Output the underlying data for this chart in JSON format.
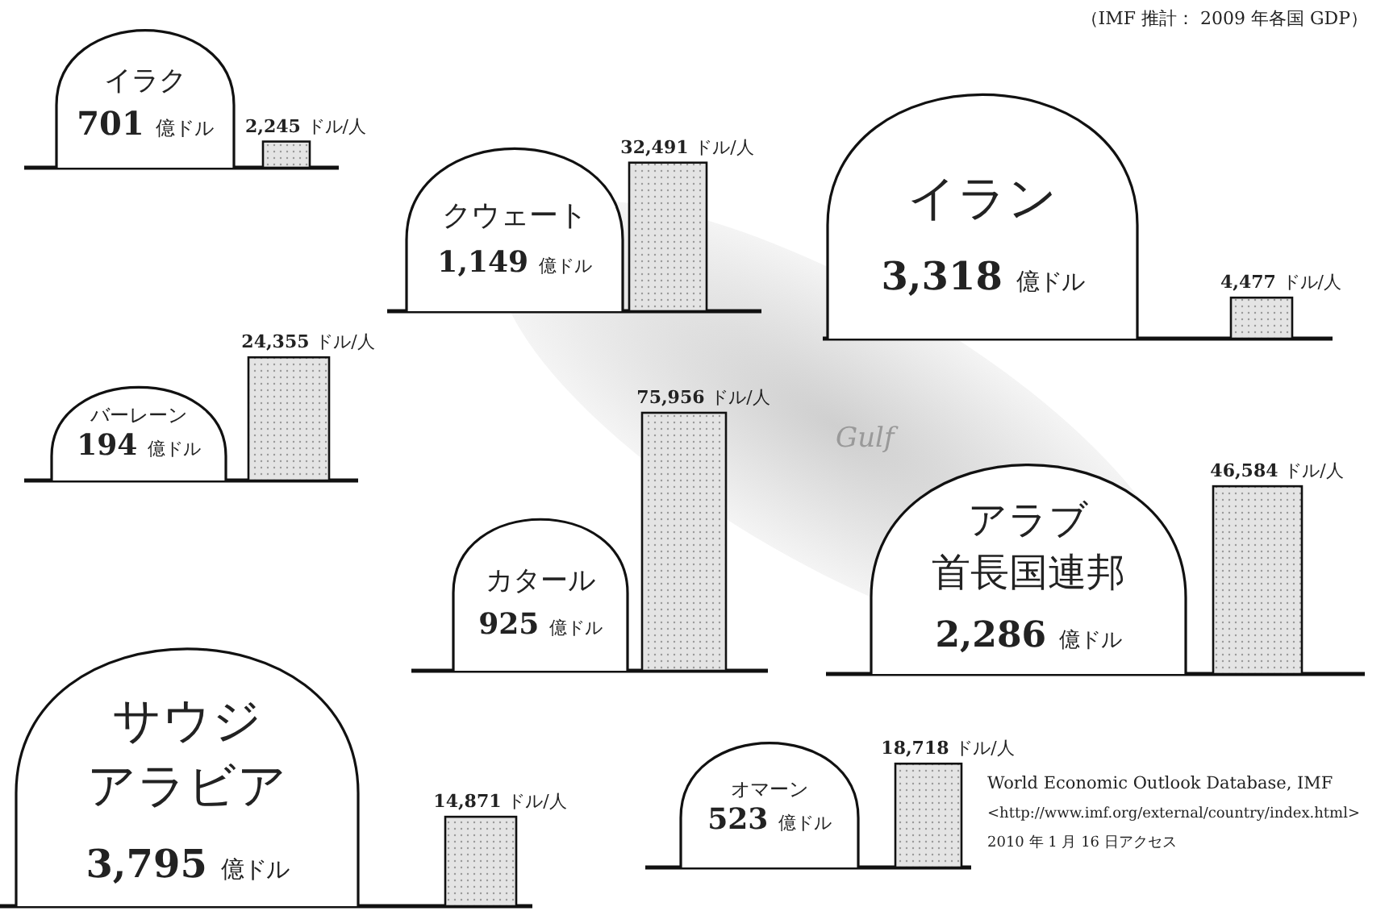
{
  "chart_data": {
    "type": "other",
    "title": "（IMF 推計： 2009 年各国 GDP）",
    "categories": [
      "イラク",
      "クウェート",
      "イラン",
      "バーレーン",
      "カタール",
      "アラブ首長国連邦",
      "サウジアラビア",
      "オマーン"
    ],
    "series": [
      {
        "type": "other",
        "color": "#ffffff",
        "values": [
          701,
          1149,
          3318,
          194,
          925,
          2286,
          3795,
          523
        ],
        "value_labels": [
          "701 億ドル",
          "1,149 億ドル",
          "3,318 億ドル",
          "194 億ドル",
          "925 億ドル",
          "2,286 億ドル",
          "3,795 億ドル",
          "523 億ドル"
        ]
      },
      {
        "type": "bar",
        "color": "#e4e4e4",
        "values": [
          2245,
          32491,
          4477,
          24355,
          75956,
          46584,
          14871,
          18718
        ],
        "value_labels": [
          "2,245 ドル/人",
          "32,491 ドル/人",
          "4,477 ドル/人",
          "24,355 ドル/人",
          "75,956 ドル/人",
          "46,584 ドル/人",
          "14,871 ドル/人",
          "18,718 ドル/人"
        ]
      }
    ],
    "annotations": [
      "Gulf",
      "World Economic Outlook Database, IMF",
      "<http://www.imf.org/external/country/index.html>",
      "2010 年 1 月 16 日アクセス"
    ]
  }
}
